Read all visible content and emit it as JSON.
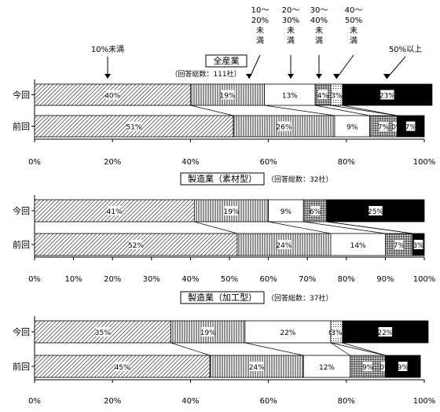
{
  "chart_data": [
    {
      "type": "bar",
      "orientation": "horizontal",
      "stacked": true,
      "percent": true,
      "title": "全産業",
      "note": "（回答総数：111社）",
      "rows": [
        "今回",
        "前回"
      ],
      "xlim": [
        0,
        100
      ],
      "xticks": [
        "0%",
        "20%",
        "40%",
        "60%",
        "80%",
        "100%"
      ],
      "legend_labels": {
        "s1": "10%未満",
        "s2": "10～\n20%\n未\n満",
        "s3": "20～\n30%\n未\n満",
        "s4": "30～\n40%\n未\n満",
        "s5": "40～\n50%\n未\n満",
        "s6": "50%以上"
      },
      "series": [
        {
          "name": "10%未満",
          "pattern": "diag",
          "values": [
            40,
            51
          ]
        },
        {
          "name": "10～20%未満",
          "pattern": "vert",
          "values": [
            19,
            26
          ]
        },
        {
          "name": "20～30%未満",
          "pattern": "white",
          "values": [
            13,
            9
          ]
        },
        {
          "name": "30～40%未満",
          "pattern": "grid",
          "values": [
            4,
            7
          ]
        },
        {
          "name": "40～50%未満",
          "pattern": "dots",
          "values": [
            3,
            0
          ]
        },
        {
          "name": "50%以上",
          "pattern": "black",
          "values": [
            23,
            7
          ]
        }
      ],
      "labels": [
        [
          "40%",
          "19%",
          "13%",
          "4%",
          "3%",
          "23%"
        ],
        [
          "51%",
          "26%",
          "9%",
          "7%",
          "0%",
          "7%"
        ]
      ]
    },
    {
      "type": "bar",
      "orientation": "horizontal",
      "stacked": true,
      "percent": true,
      "title": "製造業（素材型）",
      "note": "（回答総数：32社）",
      "rows": [
        "今回",
        "前回"
      ],
      "xlim": [
        0,
        100
      ],
      "xticks": [
        "0%",
        "10%",
        "20%",
        "30%",
        "40%",
        "50%",
        "60%",
        "70%",
        "80%",
        "90%",
        "100%"
      ],
      "series": [
        {
          "name": "10%未満",
          "pattern": "diag",
          "values": [
            41,
            52
          ]
        },
        {
          "name": "10～20%未満",
          "pattern": "vert",
          "values": [
            19,
            24
          ]
        },
        {
          "name": "20～30%未満",
          "pattern": "white",
          "values": [
            9,
            14
          ]
        },
        {
          "name": "30～40%未満",
          "pattern": "grid",
          "values": [
            6,
            7
          ]
        },
        {
          "name": "40～50%未満",
          "pattern": "dots",
          "values": [
            0,
            0
          ]
        },
        {
          "name": "50%以上",
          "pattern": "black",
          "values": [
            25,
            3
          ]
        }
      ],
      "labels": [
        [
          "41%",
          "19%",
          "9%",
          "6%",
          "",
          "25%"
        ],
        [
          "52%",
          "24%",
          "14%",
          "7%",
          "",
          "3%"
        ]
      ]
    },
    {
      "type": "bar",
      "orientation": "horizontal",
      "stacked": true,
      "percent": true,
      "title": "製造業（加工型）",
      "note": "（回答総数：37社）",
      "rows": [
        "今回",
        "前回"
      ],
      "xlim": [
        0,
        100
      ],
      "xticks": [
        "0%",
        "20%",
        "40%",
        "60%",
        "80%",
        "100%"
      ],
      "series": [
        {
          "name": "10%未満",
          "pattern": "diag",
          "values": [
            35,
            45
          ]
        },
        {
          "name": "10～20%未満",
          "pattern": "vert",
          "values": [
            19,
            24
          ]
        },
        {
          "name": "20～30%未満",
          "pattern": "white",
          "values": [
            22,
            12
          ]
        },
        {
          "name": "30～40%未満",
          "pattern": "grid",
          "values": [
            0,
            9
          ]
        },
        {
          "name": "40～50%未満",
          "pattern": "dots",
          "values": [
            3,
            0
          ]
        },
        {
          "name": "50%以上",
          "pattern": "black",
          "values": [
            22,
            9
          ]
        }
      ],
      "labels": [
        [
          "35%",
          "19%",
          "22%",
          "0",
          "3%",
          "22%"
        ],
        [
          "45%",
          "24%",
          "12%",
          "9%",
          "0%",
          "9%"
        ]
      ]
    }
  ]
}
